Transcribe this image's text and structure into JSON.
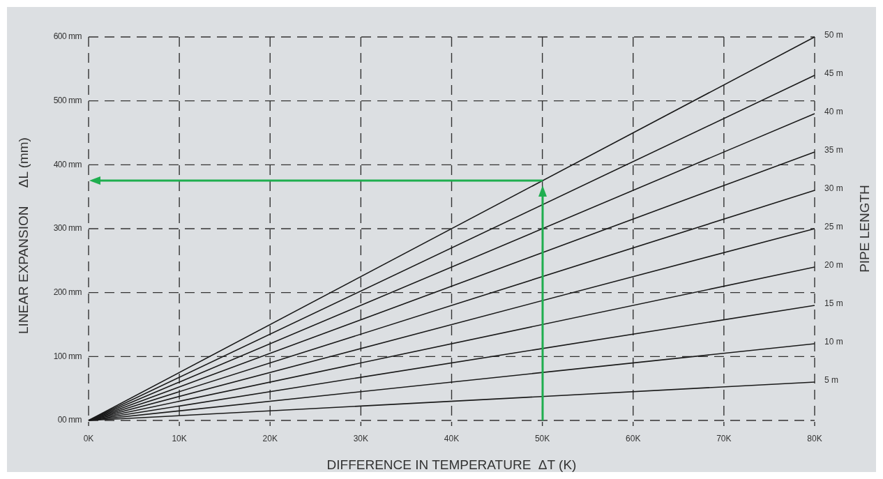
{
  "chart_data": {
    "type": "line",
    "xlabel": "DIFFERENCE IN TEMPERATURE  ΔT (K)",
    "ylabel": "LINEAR EXPANSION     ΔL (mm)",
    "y2label": "PIPE LENGTH",
    "xlim": [
      0,
      80
    ],
    "xticks": [
      {
        "value": 0,
        "label": "0K"
      },
      {
        "value": 10,
        "label": "10K"
      },
      {
        "value": 20,
        "label": "20K"
      },
      {
        "value": 30,
        "label": "30K"
      },
      {
        "value": 40,
        "label": "40K"
      },
      {
        "value": 50,
        "label": "50K"
      },
      {
        "value": 60,
        "label": "60K"
      },
      {
        "value": 70,
        "label": "70K"
      },
      {
        "value": 80,
        "label": "80K"
      }
    ],
    "ylim": [
      0,
      600
    ],
    "yticks": [
      {
        "value": 0,
        "label": "00 mm"
      },
      {
        "value": 100,
        "label": "100 mm"
      },
      {
        "value": 200,
        "label": "200 mm"
      },
      {
        "value": 300,
        "label": "300 mm"
      },
      {
        "value": 400,
        "label": "400 mm"
      },
      {
        "value": 500,
        "label": "500 mm"
      },
      {
        "value": 600,
        "label": "600 mm"
      }
    ],
    "grid": true,
    "line_style": "solid",
    "x": [
      0,
      80
    ],
    "series": [
      {
        "name": "50 m",
        "color": "#1a1a1a",
        "values": [
          0,
          600
        ]
      },
      {
        "name": "45 m",
        "color": "#1a1a1a",
        "values": [
          0,
          540
        ]
      },
      {
        "name": "40 m",
        "color": "#1a1a1a",
        "values": [
          0,
          480
        ]
      },
      {
        "name": "35 m",
        "color": "#1a1a1a",
        "values": [
          0,
          420
        ]
      },
      {
        "name": "30 m",
        "color": "#1a1a1a",
        "values": [
          0,
          360
        ]
      },
      {
        "name": "25 m",
        "color": "#1a1a1a",
        "values": [
          0,
          300
        ]
      },
      {
        "name": "20 m",
        "color": "#1a1a1a",
        "values": [
          0,
          240
        ]
      },
      {
        "name": "15 m",
        "color": "#1a1a1a",
        "values": [
          0,
          180
        ]
      },
      {
        "name": "10 m",
        "color": "#1a1a1a",
        "values": [
          0,
          120
        ]
      },
      {
        "name": "5 m",
        "color": "#1a1a1a",
        "values": [
          0,
          60
        ]
      }
    ]
  }
}
